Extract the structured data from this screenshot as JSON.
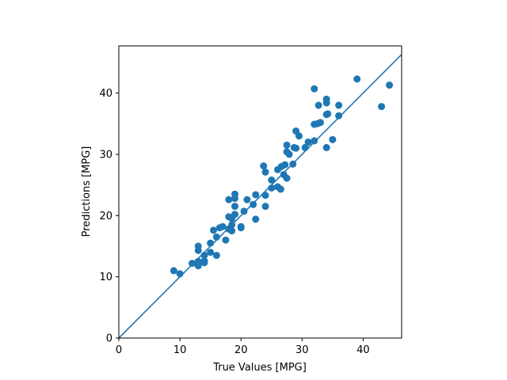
{
  "chart_data": {
    "type": "scatter",
    "title": "",
    "xlabel": "True Values [MPG]",
    "ylabel": "Predictions [MPG]",
    "xlim": [
      0,
      46.3
    ],
    "ylim": [
      0,
      47.7
    ],
    "xticks": [
      0,
      10,
      20,
      30,
      40
    ],
    "yticks": [
      0,
      10,
      20,
      30,
      40
    ],
    "grid": false,
    "marker_color": "#1f77b4",
    "line_color": "#1f77b4",
    "reference_line": {
      "from": [
        0,
        0
      ],
      "to": [
        46.3,
        46.3
      ]
    },
    "points": [
      [
        9.0,
        11.0
      ],
      [
        10.0,
        10.5
      ],
      [
        12.0,
        12.2
      ],
      [
        13.0,
        12.5
      ],
      [
        13.0,
        14.3
      ],
      [
        13.0,
        15.0
      ],
      [
        13.0,
        11.8
      ],
      [
        14.0,
        12.3
      ],
      [
        14.0,
        12.6
      ],
      [
        14.0,
        13.5
      ],
      [
        15.0,
        14.0
      ],
      [
        15.0,
        15.5
      ],
      [
        15.5,
        17.6
      ],
      [
        16.0,
        13.5
      ],
      [
        16.0,
        16.5
      ],
      [
        16.5,
        18.0
      ],
      [
        17.0,
        18.2
      ],
      [
        17.5,
        16.0
      ],
      [
        18.0,
        17.8
      ],
      [
        18.0,
        19.8
      ],
      [
        18.0,
        22.6
      ],
      [
        18.5,
        17.5
      ],
      [
        18.5,
        18.5
      ],
      [
        18.5,
        19.5
      ],
      [
        19.0,
        20.2
      ],
      [
        19.0,
        21.5
      ],
      [
        19.0,
        22.8
      ],
      [
        19.0,
        23.5
      ],
      [
        20.0,
        18.2
      ],
      [
        20.0,
        18.0
      ],
      [
        20.5,
        20.7
      ],
      [
        21.0,
        22.6
      ],
      [
        22.0,
        21.8
      ],
      [
        22.4,
        23.4
      ],
      [
        22.4,
        19.4
      ],
      [
        23.7,
        28.1
      ],
      [
        24.0,
        27.1
      ],
      [
        24.0,
        21.5
      ],
      [
        24.0,
        23.3
      ],
      [
        25.0,
        24.5
      ],
      [
        25.0,
        25.8
      ],
      [
        26.0,
        24.7
      ],
      [
        26.0,
        27.5
      ],
      [
        26.5,
        24.3
      ],
      [
        26.6,
        28.0
      ],
      [
        27.0,
        26.7
      ],
      [
        27.2,
        28.3
      ],
      [
        27.5,
        26.1
      ],
      [
        27.5,
        30.4
      ],
      [
        27.5,
        31.5
      ],
      [
        27.9,
        30.0
      ],
      [
        28.5,
        28.4
      ],
      [
        28.7,
        31.1
      ],
      [
        29.0,
        31.0
      ],
      [
        29.0,
        33.8
      ],
      [
        29.5,
        33.0
      ],
      [
        30.5,
        31.1
      ],
      [
        31.0,
        32.0
      ],
      [
        32.0,
        32.2
      ],
      [
        32.0,
        34.9
      ],
      [
        32.0,
        40.7
      ],
      [
        32.5,
        35.0
      ],
      [
        32.7,
        38.0
      ],
      [
        33.0,
        35.2
      ],
      [
        34.0,
        38.4
      ],
      [
        34.0,
        39.0
      ],
      [
        34.0,
        36.5
      ],
      [
        34.2,
        36.6
      ],
      [
        34.0,
        31.1
      ],
      [
        35.0,
        32.4
      ],
      [
        36.0,
        38.0
      ],
      [
        36.0,
        36.3
      ],
      [
        39.0,
        42.3
      ],
      [
        43.0,
        37.8
      ],
      [
        44.3,
        41.3
      ]
    ]
  }
}
